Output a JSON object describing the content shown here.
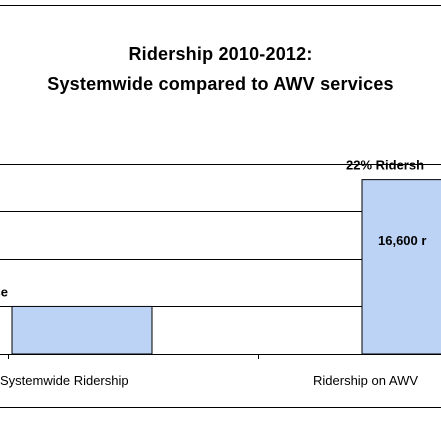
{
  "colors": {
    "bar_fill": "#bcd3f5",
    "bar_stroke": "#000000",
    "grid": "#000000",
    "text": "#000000"
  },
  "chart_data": {
    "type": "bar",
    "title": "Ridership 2010-2012:",
    "subtitle": "Systemwide compared to AWV services",
    "categories": [
      "Systemwide Ridership",
      "Ridership on AWV"
    ],
    "values": [
      6,
      22
    ],
    "value_labels": [
      "% Ridership Increase",
      "22% Ridersh"
    ],
    "inner_labels": [
      "",
      "16,600 r"
    ],
    "ylim": [
      0,
      27
    ],
    "grid": true,
    "xlabel": "",
    "ylabel": ""
  }
}
